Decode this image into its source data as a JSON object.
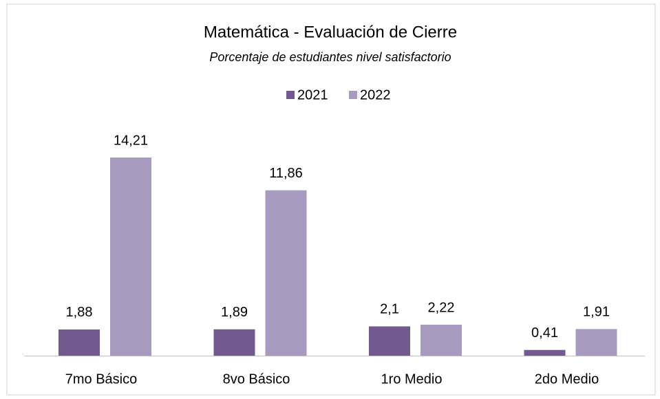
{
  "chart_data": {
    "type": "bar",
    "title": "Matemática - Evaluación de Cierre",
    "subtitle": "Porcentaje de estudiantes nivel satisfactorio",
    "categories": [
      "7mo Básico",
      "8vo Básico",
      "1ro Medio",
      "2do Medio"
    ],
    "series": [
      {
        "name": "2021",
        "color": "#725a8e",
        "values": [
          1.88,
          1.89,
          2.1,
          0.41
        ],
        "value_labels": [
          "1,88",
          "1,89",
          "2,1",
          "0,41"
        ]
      },
      {
        "name": "2022",
        "color": "#a89bc0",
        "values": [
          14.21,
          11.86,
          2.22,
          1.91
        ],
        "value_labels": [
          "14,21",
          "11,86",
          "2,22",
          "1,91"
        ]
      }
    ],
    "legend": "top"
  }
}
